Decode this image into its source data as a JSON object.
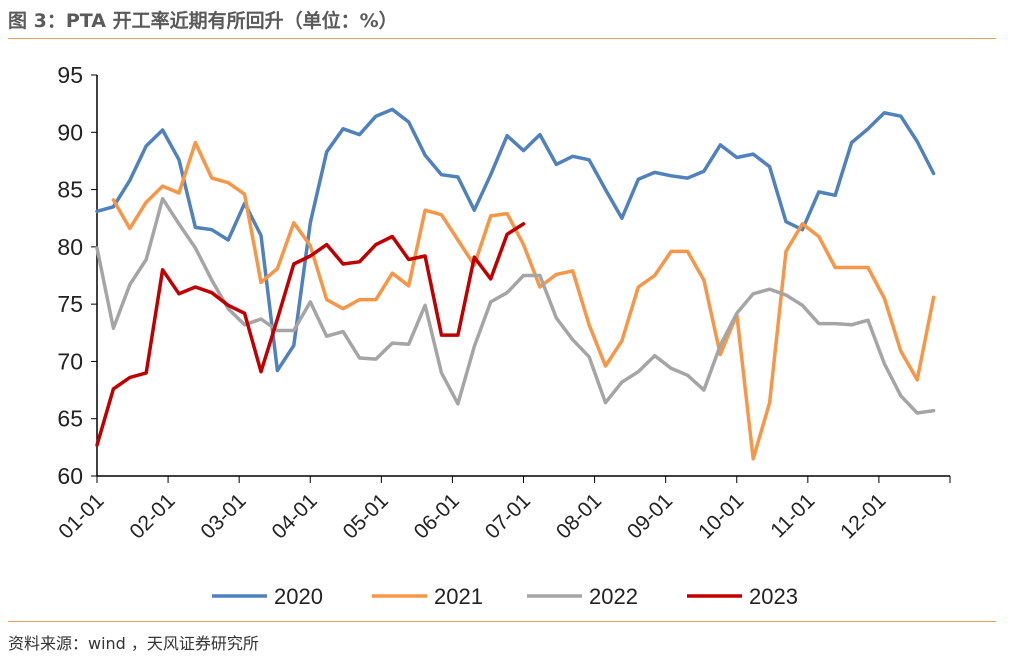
{
  "header": {
    "title": "图 3：PTA 开工率近期有所回升（单位：%）"
  },
  "footer": {
    "source": "资料来源：wind ，天风证券研究所"
  },
  "chart_data": {
    "type": "line",
    "title": "图 3：PTA 开工率近期有所回升（单位：%）",
    "xlabel": "",
    "ylabel": "",
    "ylim": [
      60,
      95
    ],
    "yticks": [
      "95",
      "90",
      "85",
      "80",
      "75",
      "70",
      "65",
      "60"
    ],
    "x_ticks": [
      "01-01",
      "02-01",
      "03-01",
      "04-01",
      "05-01",
      "06-01",
      "07-01",
      "08-01",
      "09-01",
      "10-01",
      "11-01",
      "12-01"
    ],
    "x_range_weeks": [
      0,
      52
    ],
    "grid": false,
    "legend_position": "bottom",
    "series": [
      {
        "name": "2020",
        "color": "#4f81bd",
        "start_week": 0,
        "values": [
          83.1,
          83.5,
          85.8,
          88.8,
          90.2,
          87.6,
          81.7,
          81.5,
          80.6,
          83.8,
          81.0,
          69.2,
          71.4,
          82.1,
          88.3,
          90.3,
          89.8,
          91.4,
          92.0,
          90.9,
          88.0,
          86.3,
          86.1,
          83.2,
          86.3,
          89.7,
          88.4,
          89.8,
          87.2,
          87.9,
          87.6,
          85.0,
          82.5,
          85.9,
          86.5,
          86.2,
          86.0,
          86.6,
          88.9,
          87.8,
          88.1,
          87.0,
          82.2,
          81.5,
          84.8,
          84.5,
          89.1,
          90.3,
          91.7,
          91.4,
          89.2,
          86.4
        ]
      },
      {
        "name": "2021",
        "color": "#f79646",
        "start_week": 0,
        "values": [
          null,
          84.1,
          81.6,
          83.9,
          85.3,
          84.7,
          89.1,
          86.0,
          85.6,
          84.6,
          76.9,
          78.1,
          82.1,
          80.1,
          75.4,
          74.6,
          75.4,
          75.4,
          77.7,
          76.6,
          83.2,
          82.8,
          80.6,
          78.4,
          82.7,
          82.9,
          80.2,
          76.5,
          77.6,
          77.9,
          73.2,
          69.6,
          71.8,
          76.5,
          77.5,
          79.6,
          79.6,
          77.1,
          70.6,
          74.1,
          61.5,
          66.4,
          79.6,
          82.0,
          80.9,
          78.2,
          78.2,
          78.2,
          75.5,
          70.9,
          68.4,
          75.6
        ]
      },
      {
        "name": "2022",
        "color": "#a5a5a5",
        "start_week": 0,
        "values": [
          79.9,
          72.9,
          76.7,
          78.9,
          84.2,
          82.0,
          79.9,
          77.1,
          74.6,
          73.2,
          73.7,
          72.7,
          72.7,
          75.2,
          72.2,
          72.6,
          70.3,
          70.2,
          71.6,
          71.5,
          74.9,
          69.0,
          66.3,
          71.3,
          75.2,
          76.0,
          77.5,
          77.5,
          73.8,
          71.9,
          70.4,
          66.4,
          68.2,
          69.1,
          70.5,
          69.4,
          68.8,
          67.5,
          71.4,
          74.2,
          75.9,
          76.3,
          75.8,
          74.9,
          73.3,
          73.3,
          73.2,
          73.6,
          69.8,
          67.0,
          65.5,
          65.7
        ]
      },
      {
        "name": "2023",
        "color": "#c00000",
        "start_week": 0,
        "values": [
          62.7,
          67.6,
          68.6,
          69.0,
          78.0,
          75.9,
          76.5,
          76.0,
          74.9,
          74.2,
          69.1,
          73.7,
          78.5,
          79.2,
          80.2,
          78.5,
          78.7,
          80.2,
          80.9,
          78.9,
          79.2,
          72.3,
          72.3,
          79.1,
          77.2,
          81.1,
          82.0
        ]
      }
    ]
  }
}
